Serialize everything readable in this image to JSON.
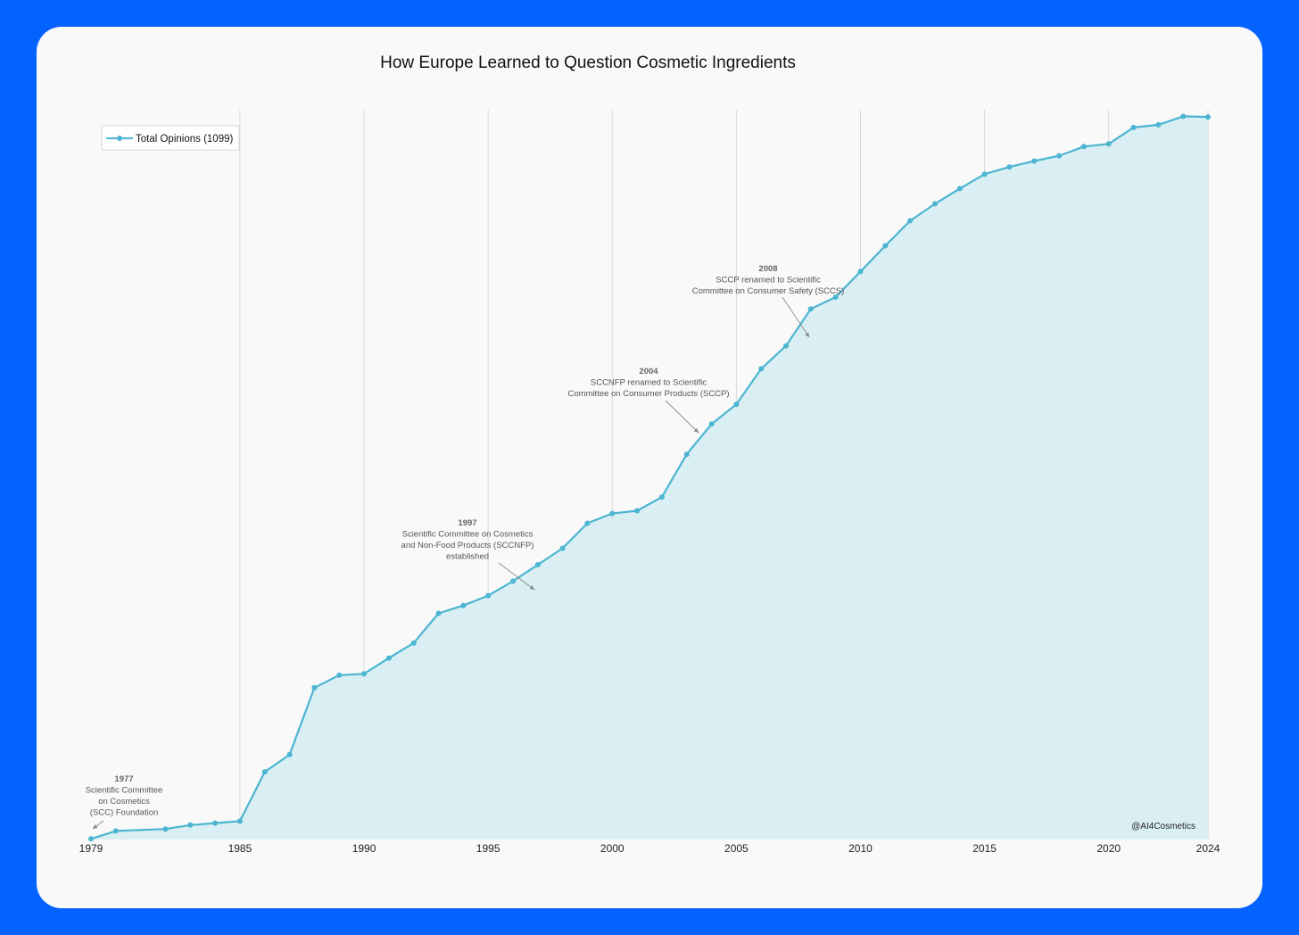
{
  "colors": {
    "background": "#0463FF",
    "card": "#F9F9F9",
    "line": "#4CB5D1",
    "fill": "#D5EDF2",
    "grid": "#D9D9D9",
    "annotation": "#666666"
  },
  "credit": "@AI4Cosmetics",
  "chart_data": {
    "type": "area",
    "title": "How Europe Learned to Question Cosmetic Ingredients",
    "xlabel": "",
    "ylabel": "",
    "xlim": [
      1979,
      2024
    ],
    "ylim": [
      0,
      1110
    ],
    "grid": "vertical",
    "legend_position": "top-left",
    "x_ticks": [
      1979,
      1985,
      1990,
      1995,
      2000,
      2005,
      2010,
      2015,
      2020,
      2024
    ],
    "x_tick_labels": [
      "1979",
      "1985",
      "1990",
      "1995",
      "2000",
      "2005",
      "2010",
      "2015",
      "2020",
      "2024"
    ],
    "series": [
      {
        "name": "Total Opinions (1099)",
        "x": [
          1979,
          1980,
          1982,
          1983,
          1984,
          1985,
          1986,
          1987,
          1988,
          1989,
          1990,
          1991,
          1992,
          1993,
          1994,
          1995,
          1996,
          1997,
          1998,
          1999,
          2000,
          2001,
          2002,
          2003,
          2004,
          2005,
          2006,
          2007,
          2008,
          2009,
          2010,
          2011,
          2012,
          2013,
          2014,
          2015,
          2016,
          2017,
          2018,
          2019,
          2020,
          2021,
          2022,
          2023,
          2024
        ],
        "values": [
          1,
          13,
          16,
          22,
          25,
          28,
          103,
          129,
          231,
          250,
          252,
          276,
          299,
          344,
          356,
          371,
          393,
          418,
          443,
          481,
          496,
          500,
          521,
          586,
          632,
          662,
          716,
          751,
          807,
          825,
          864,
          903,
          941,
          967,
          990,
          1012,
          1023,
          1032,
          1040,
          1054,
          1058,
          1083,
          1087,
          1100,
          1099
        ]
      }
    ],
    "annotations": [
      {
        "x": 1977,
        "year_label": "1977",
        "lines": [
          "Scientific Committee",
          "on Cosmetics",
          "(SCC) Foundation"
        ]
      },
      {
        "x": 1997,
        "year_label": "1997",
        "lines": [
          "Scientific Committee on Cosmetics",
          "and Non-Food Products (SCCNFP)",
          "established"
        ]
      },
      {
        "x": 2004,
        "year_label": "2004",
        "lines": [
          "SCCNFP renamed to Scientific",
          "Committee on Consumer Products (SCCP)"
        ]
      },
      {
        "x": 2008,
        "year_label": "2008",
        "lines": [
          "SCCP renamed to Scientific",
          "Committee on Consumer Safety (SCCS)"
        ]
      }
    ]
  }
}
